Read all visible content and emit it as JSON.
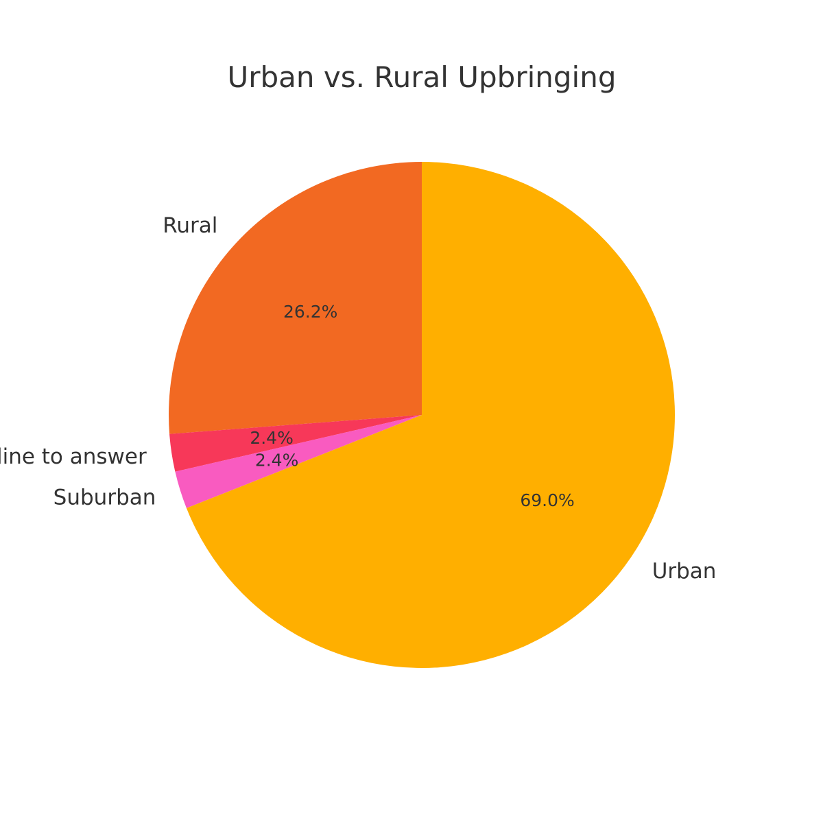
{
  "chart_data": {
    "type": "pie",
    "title": "Urban vs. Rural Upbringing",
    "start_angle_deg": 90,
    "direction": "counterclockwise",
    "slices": [
      {
        "label": "Rural",
        "value": 26.2,
        "pct_label": "26.2%",
        "color": "#F26922"
      },
      {
        "label": "I decline to answer",
        "value": 2.4,
        "pct_label": "2.4%",
        "color": "#F73859"
      },
      {
        "label": "Suburban",
        "value": 2.4,
        "pct_label": "2.4%",
        "color": "#F95BC0"
      },
      {
        "label": "Urban",
        "value": 69.0,
        "pct_label": "69.0%",
        "color": "#FFAF00"
      }
    ]
  }
}
